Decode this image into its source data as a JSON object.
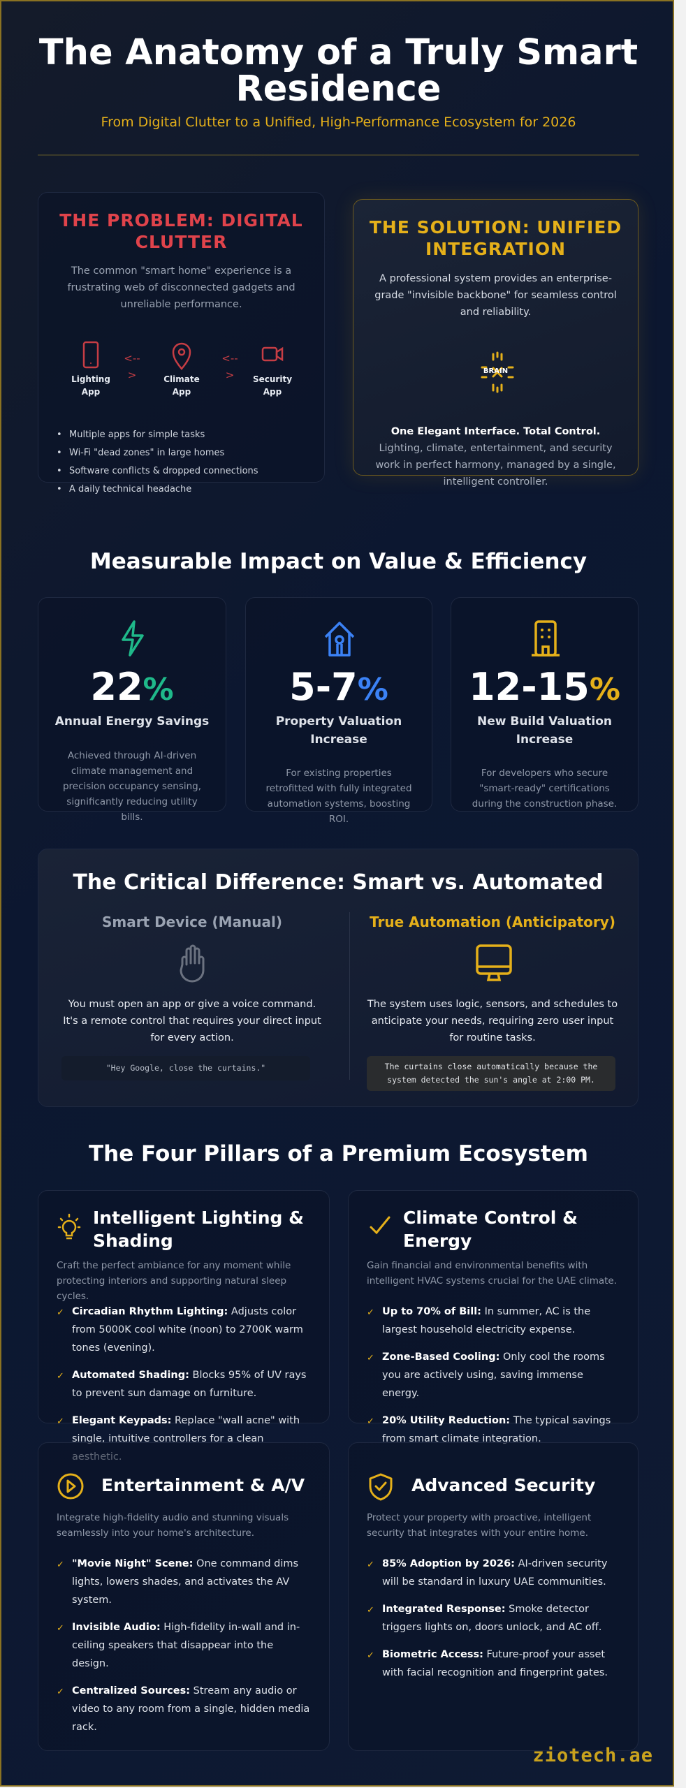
{
  "header": {
    "title": "The Anatomy of a Truly Smart Residence",
    "subtitle": "From Digital Clutter to a Unified, High-Performance Ecosystem for 2026"
  },
  "problem": {
    "title": "THE PROBLEM: DIGITAL CLUTTER",
    "description": "The common \"smart home\" experience is a frustrating web of disconnected gadgets and unreliable performance.",
    "apps": [
      {
        "label": "Lighting App",
        "icon": "smartphone-icon"
      },
      {
        "label": "Climate App",
        "icon": "map-pin-icon"
      },
      {
        "label": "Security App",
        "icon": "video-camera-icon"
      }
    ],
    "arrow": "<-- >",
    "bullets": [
      "Multiple apps for simple tasks",
      "Wi-Fi \"dead zones\" in large homes",
      "Software conflicts & dropped connections",
      "A daily technical headache"
    ]
  },
  "solution": {
    "title": "THE SOLUTION: UNIFIED INTEGRATION",
    "description": "A professional system provides an enterprise-grade \"invisible backbone\" for seamless control and reliability.",
    "brain_label": "BRAIN",
    "tagline": "One Elegant Interface. Total Control.",
    "detail": "Lighting, climate, entertainment, and security work in perfect harmony, managed by a single, intelligent controller."
  },
  "impact": {
    "heading": "Measurable Impact on Value & Efficiency",
    "stats": [
      {
        "value": "22",
        "unit": "%",
        "label": "Annual Energy Savings",
        "desc": "Achieved through AI-driven climate management and precision occupancy sensing, significantly reducing utility bills.",
        "color": "#1fb98a",
        "icon": "lightning-bolt-icon"
      },
      {
        "value": "5-7",
        "unit": "%",
        "label": "Property Valuation Increase",
        "desc": "For existing properties retrofitted with fully integrated automation systems, boosting ROI.",
        "color": "#3b82f6",
        "icon": "smart-home-icon"
      },
      {
        "value": "12-15",
        "unit": "%",
        "label": "New Build Valuation Increase",
        "desc": "For developers who secure \"smart-ready\" certifications during the construction phase.",
        "color": "#e5b01a",
        "icon": "building-icon"
      }
    ]
  },
  "difference": {
    "heading": "The Critical Difference: Smart vs. Automated",
    "manual": {
      "title": "Smart Device (Manual)",
      "text": "You must open an app or give a voice command. It's a remote control that requires your direct input for every action.",
      "example": "\"Hey Google, close the curtains.\""
    },
    "auto": {
      "title": "True Automation (Anticipatory)",
      "text": "The system uses logic, sensors, and schedules to anticipate your needs, requiring zero user input for routine tasks.",
      "example": "The curtains close automatically because the system detected the sun's angle at 2:00 PM."
    }
  },
  "pillars": {
    "heading": "The Four Pillars of a Premium Ecosystem",
    "items": [
      {
        "title": "Intelligent Lighting & Shading",
        "icon": "lightbulb-icon",
        "desc": "Craft the perfect ambiance for any moment while protecting interiors and supporting natural sleep cycles.",
        "points": [
          {
            "b": "Circadian Rhythm Lighting:",
            "t": " Adjusts color from 5000K cool white (noon) to 2700K warm tones (evening)."
          },
          {
            "b": "Automated Shading:",
            "t": " Blocks 95% of UV rays to prevent sun damage on furniture."
          },
          {
            "b": "Elegant Keypads:",
            "t": " Replace \"wall acne\" with single, intuitive controllers for a clean aesthetic."
          }
        ]
      },
      {
        "title": "Climate Control & Energy",
        "icon": "checkmark-icon",
        "desc": "Gain financial and environmental benefits with intelligent HVAC systems crucial for the UAE climate.",
        "points": [
          {
            "b": "Up to 70% of Bill:",
            "t": " In summer, AC is the largest household electricity expense."
          },
          {
            "b": "Zone-Based Cooling:",
            "t": " Only cool the rooms you are actively using, saving immense energy."
          },
          {
            "b": "20% Utility Reduction:",
            "t": " The typical savings from smart climate integration."
          }
        ]
      },
      {
        "title": "Entertainment & A/V",
        "icon": "play-circle-icon",
        "desc": "Integrate high-fidelity audio and stunning visuals seamlessly into your home's architecture.",
        "points": [
          {
            "b": "\"Movie Night\" Scene:",
            "t": " One command dims lights, lowers shades, and activates the AV system."
          },
          {
            "b": "Invisible Audio:",
            "t": " High-fidelity in-wall and in-ceiling speakers that disappear into the design."
          },
          {
            "b": "Centralized Sources:",
            "t": " Stream any audio or video to any room from a single, hidden media rack."
          }
        ]
      },
      {
        "title": "Advanced Security",
        "icon": "shield-check-icon",
        "desc": "Protect your property with proactive, intelligent security that integrates with your entire home.",
        "points": [
          {
            "b": "85% Adoption by 2026:",
            "t": " AI-driven security will be standard in luxury UAE communities."
          },
          {
            "b": "Integrated Response:",
            "t": " Smoke detector triggers lights on, doors unlock, and AC off."
          },
          {
            "b": "Biometric Access:",
            "t": " Future-proof your asset with facial recognition and fingerprint gates."
          }
        ]
      }
    ],
    "check": "✓"
  },
  "footer": {
    "brand": "ziotech.ae"
  },
  "colors": {
    "gold": "#e5b01a",
    "red": "#e0434b",
    "green": "#1fb98a",
    "blue": "#3b82f6",
    "background": "#0c1730"
  }
}
